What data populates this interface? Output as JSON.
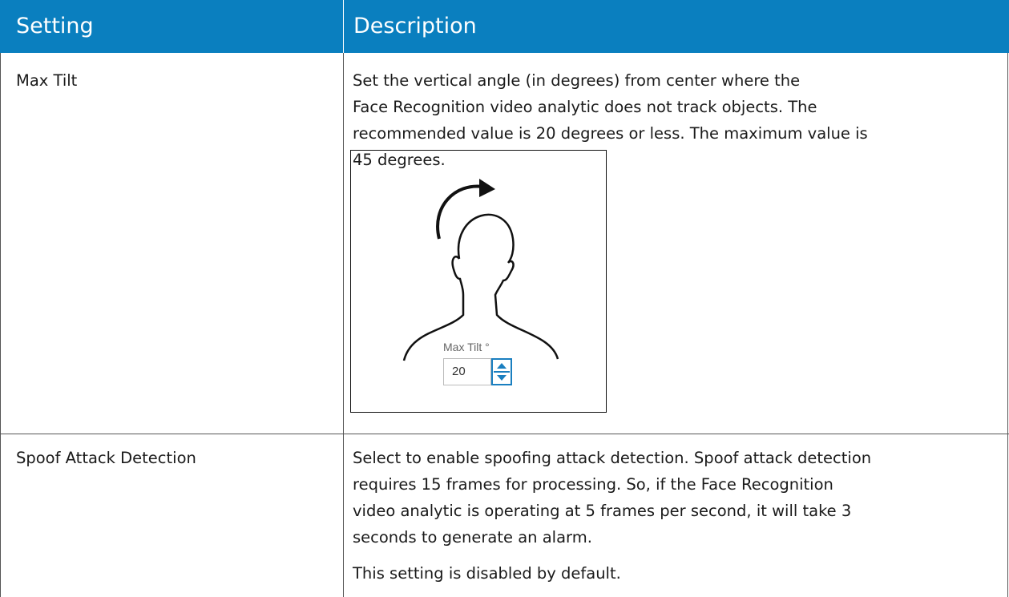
{
  "table": {
    "header": [
      "Setting",
      "Description"
    ],
    "rows": [
      {
        "setting": "Max Tilt",
        "description": [
          "Set the vertical angle (in degrees) from center where the",
          "Face Recognition video analytic does not track objects. The",
          "recommended value is 20 degrees or less. The maximum value is",
          "45 degrees."
        ]
      },
      {
        "setting": "Spoof Attack Detection",
        "description": [
          "Select to enable spoofing attack detection. Spoof attack detection",
          "requires 15 frames for processing. So, if the Face Recognition",
          "video analytic is operating at 5 frames per second, it will take 3",
          "seconds to generate an alarm."
        ],
        "note": "This setting is disabled by default."
      }
    ]
  },
  "figure": {
    "label": "Max Tilt °",
    "value": "20"
  }
}
